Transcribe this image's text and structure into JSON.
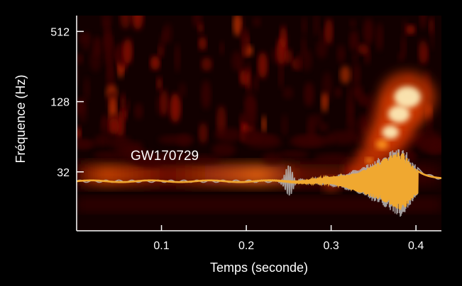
{
  "chart_data": {
    "type": "heatmap",
    "title": "",
    "xlabel": "Temps (seconde)",
    "ylabel": "Fréquence (Hz)",
    "xlim": [
      0.0,
      0.43
    ],
    "ylim": [
      10,
      700
    ],
    "y_scale": "log",
    "x_ticks": [
      0.1,
      0.2,
      0.3,
      0.4
    ],
    "x_tick_labels": [
      "0.1",
      "0.2",
      "0.3",
      "0.4"
    ],
    "y_ticks": [
      32,
      128,
      512
    ],
    "y_tick_labels": [
      "32",
      "128",
      "512"
    ],
    "grid": false,
    "colormap": [
      "#000000",
      "#3a0000",
      "#8a0a00",
      "#d83a00",
      "#ff9a20",
      "#fff4c0"
    ],
    "annotation": "GW170729",
    "chirp_track": {
      "name": "GW170729",
      "t": [
        0.3,
        0.33,
        0.345,
        0.36,
        0.37,
        0.38,
        0.39
      ],
      "f": [
        25,
        32,
        40,
        55,
        70,
        100,
        140
      ]
    },
    "waveform": {
      "data_color": "#b8b8b8",
      "model_color": "#f0a830",
      "burst_time": 0.25,
      "merger_time": 0.385
    }
  }
}
